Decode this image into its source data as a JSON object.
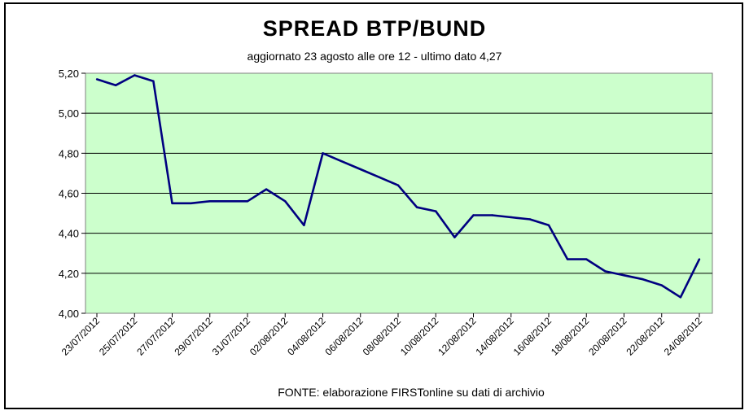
{
  "chart_data": {
    "type": "line",
    "title": "SPREAD  BTP/BUND",
    "subtitle": "aggiornato 23 agosto alle ore 12  -  ultimo dato 4,27",
    "source": "FONTE: elaborazione FIRSTonline su dati di archivio",
    "xlabel": "",
    "ylabel": "",
    "ylim": [
      4.0,
      5.2
    ],
    "xlim": [
      "23/07/2012",
      "24/08/2012"
    ],
    "yticks": [
      "4,00",
      "4,20",
      "4,40",
      "4,60",
      "4,80",
      "5,00",
      "5,20"
    ],
    "xticks": [
      "23/07/2012",
      "25/07/2012",
      "27/07/2012",
      "29/07/2012",
      "31/07/2012",
      "02/08/2012",
      "04/08/2012",
      "06/08/2012",
      "08/08/2012",
      "10/08/2012",
      "12/08/2012",
      "14/08/2012",
      "16/08/2012",
      "18/08/2012",
      "20/08/2012",
      "22/08/2012",
      "24/08/2012"
    ],
    "grid": true,
    "plot_background": "#ccffcc",
    "line_color": "#000080",
    "series": [
      {
        "name": "",
        "points": [
          [
            "23/07/2012",
            5.17
          ],
          [
            "24/07/2012",
            5.14
          ],
          [
            "25/07/2012",
            5.19
          ],
          [
            "26/07/2012",
            5.16
          ],
          [
            "27/07/2012",
            4.55
          ],
          [
            "28/07/2012",
            4.55
          ],
          [
            "29/07/2012",
            4.56
          ],
          [
            "30/07/2012",
            4.56
          ],
          [
            "31/07/2012",
            4.56
          ],
          [
            "01/08/2012",
            4.62
          ],
          [
            "02/08/2012",
            4.56
          ],
          [
            "03/08/2012",
            4.44
          ],
          [
            "04/08/2012",
            4.8
          ],
          [
            "05/08/2012",
            4.76
          ],
          [
            "06/08/2012",
            4.72
          ],
          [
            "07/08/2012",
            4.68
          ],
          [
            "08/08/2012",
            4.64
          ],
          [
            "09/08/2012",
            4.53
          ],
          [
            "10/08/2012",
            4.51
          ],
          [
            "11/08/2012",
            4.38
          ],
          [
            "12/08/2012",
            4.49
          ],
          [
            "13/08/2012",
            4.49
          ],
          [
            "14/08/2012",
            4.48
          ],
          [
            "15/08/2012",
            4.47
          ],
          [
            "16/08/2012",
            4.44
          ],
          [
            "17/08/2012",
            4.27
          ],
          [
            "18/08/2012",
            4.27
          ],
          [
            "19/08/2012",
            4.21
          ],
          [
            "20/08/2012",
            4.19
          ],
          [
            "21/08/2012",
            4.17
          ],
          [
            "22/08/2012",
            4.14
          ],
          [
            "23/08/2012",
            4.08
          ],
          [
            "24/08/2012",
            4.27
          ]
        ]
      }
    ]
  }
}
